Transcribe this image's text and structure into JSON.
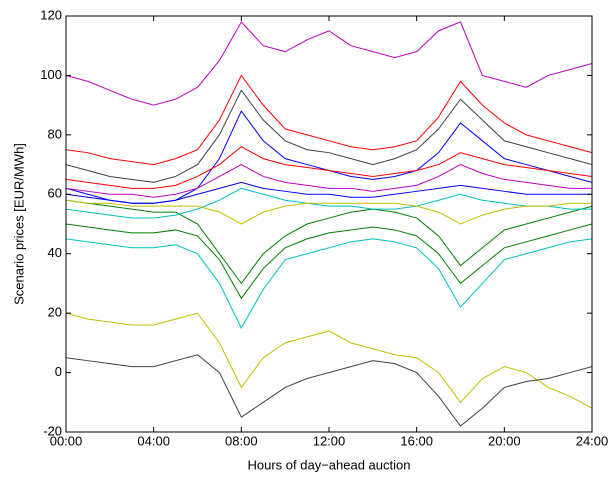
{
  "chart_data": {
    "type": "line",
    "xlabel": "Hours of day−ahead auction",
    "ylabel": "Scenario prices [EUR/MWh]",
    "x": [
      0,
      1,
      2,
      3,
      4,
      5,
      6,
      7,
      8,
      9,
      10,
      11,
      12,
      13,
      14,
      15,
      16,
      17,
      18,
      19,
      20,
      21,
      22,
      23,
      24
    ],
    "xlim": [
      0,
      24
    ],
    "xticks": [
      {
        "value": 0,
        "label": "00:00"
      },
      {
        "value": 4,
        "label": "04:00"
      },
      {
        "value": 8,
        "label": "08:00"
      },
      {
        "value": 12,
        "label": "12:00"
      },
      {
        "value": 16,
        "label": "16:00"
      },
      {
        "value": 20,
        "label": "20:00"
      },
      {
        "value": 24,
        "label": "24:00"
      }
    ],
    "ylim": [
      -20,
      120
    ],
    "yticks": [
      -20,
      0,
      20,
      40,
      60,
      80,
      100,
      120
    ],
    "grid": false,
    "series": [
      {
        "color": "#0000ff",
        "values": [
          62,
          60,
          58,
          57,
          57,
          58,
          62,
          72,
          88,
          78,
          72,
          70,
          68,
          66,
          65,
          66,
          68,
          74,
          84,
          78,
          72,
          70,
          68,
          66,
          64
        ]
      },
      {
        "color": "#008000",
        "values": [
          58,
          57,
          56,
          55,
          54,
          54,
          50,
          40,
          30,
          40,
          46,
          50,
          52,
          54,
          55,
          54,
          52,
          46,
          36,
          42,
          48,
          50,
          52,
          54,
          56
        ]
      },
      {
        "color": "#ff0000",
        "values": [
          65,
          64,
          63,
          62,
          62,
          63,
          66,
          70,
          76,
          72,
          70,
          69,
          68,
          67,
          66,
          67,
          68,
          70,
          74,
          72,
          70,
          69,
          68,
          67,
          66
        ]
      },
      {
        "color": "#00bfbf",
        "values": [
          55,
          54,
          53,
          52,
          52,
          53,
          55,
          58,
          62,
          60,
          58,
          57,
          56,
          56,
          55,
          55,
          56,
          58,
          60,
          58,
          57,
          56,
          56,
          55,
          55
        ]
      },
      {
        "color": "#bf00bf",
        "values": [
          100,
          98,
          95,
          92,
          90,
          92,
          96,
          105,
          118,
          110,
          108,
          112,
          115,
          110,
          108,
          106,
          108,
          115,
          118,
          100,
          98,
          96,
          100,
          102,
          104
        ]
      },
      {
        "color": "#bfbf00",
        "values": [
          20,
          18,
          17,
          16,
          16,
          18,
          20,
          10,
          -5,
          5,
          10,
          12,
          14,
          10,
          8,
          6,
          5,
          0,
          -10,
          -2,
          2,
          0,
          -5,
          -8,
          -12
        ]
      },
      {
        "color": "#404040",
        "values": [
          70,
          68,
          66,
          65,
          64,
          66,
          70,
          80,
          95,
          85,
          78,
          75,
          74,
          72,
          70,
          72,
          75,
          82,
          92,
          85,
          78,
          76,
          74,
          72,
          70
        ]
      },
      {
        "color": "#0000ff",
        "values": [
          60,
          59,
          58,
          57,
          57,
          58,
          60,
          62,
          64,
          62,
          61,
          60,
          60,
          59,
          59,
          60,
          61,
          62,
          63,
          62,
          61,
          60,
          60,
          60,
          60
        ]
      },
      {
        "color": "#008000",
        "values": [
          50,
          49,
          48,
          47,
          47,
          48,
          46,
          38,
          25,
          35,
          42,
          45,
          47,
          48,
          49,
          48,
          46,
          40,
          30,
          36,
          42,
          44,
          46,
          48,
          50
        ]
      },
      {
        "color": "#ff0000",
        "values": [
          75,
          74,
          72,
          71,
          70,
          72,
          75,
          85,
          100,
          90,
          82,
          80,
          78,
          76,
          75,
          76,
          78,
          86,
          98,
          90,
          84,
          80,
          78,
          76,
          74
        ]
      },
      {
        "color": "#00bfbf",
        "values": [
          45,
          44,
          43,
          42,
          42,
          43,
          40,
          30,
          15,
          28,
          38,
          40,
          42,
          44,
          45,
          44,
          42,
          35,
          22,
          30,
          38,
          40,
          42,
          44,
          45
        ]
      },
      {
        "color": "#bf00bf",
        "values": [
          62,
          61,
          60,
          60,
          59,
          60,
          62,
          66,
          70,
          66,
          64,
          63,
          62,
          62,
          61,
          62,
          63,
          66,
          70,
          67,
          65,
          64,
          63,
          62,
          62
        ]
      },
      {
        "color": "#bfbf00",
        "values": [
          58,
          57,
          57,
          56,
          56,
          56,
          56,
          54,
          50,
          54,
          56,
          57,
          57,
          57,
          57,
          57,
          56,
          54,
          50,
          53,
          55,
          56,
          56,
          57,
          57
        ]
      },
      {
        "color": "#404040",
        "values": [
          5,
          4,
          3,
          2,
          2,
          4,
          6,
          0,
          -15,
          -10,
          -5,
          -2,
          0,
          2,
          4,
          3,
          0,
          -8,
          -18,
          -12,
          -5,
          -3,
          -2,
          0,
          2
        ]
      }
    ]
  }
}
